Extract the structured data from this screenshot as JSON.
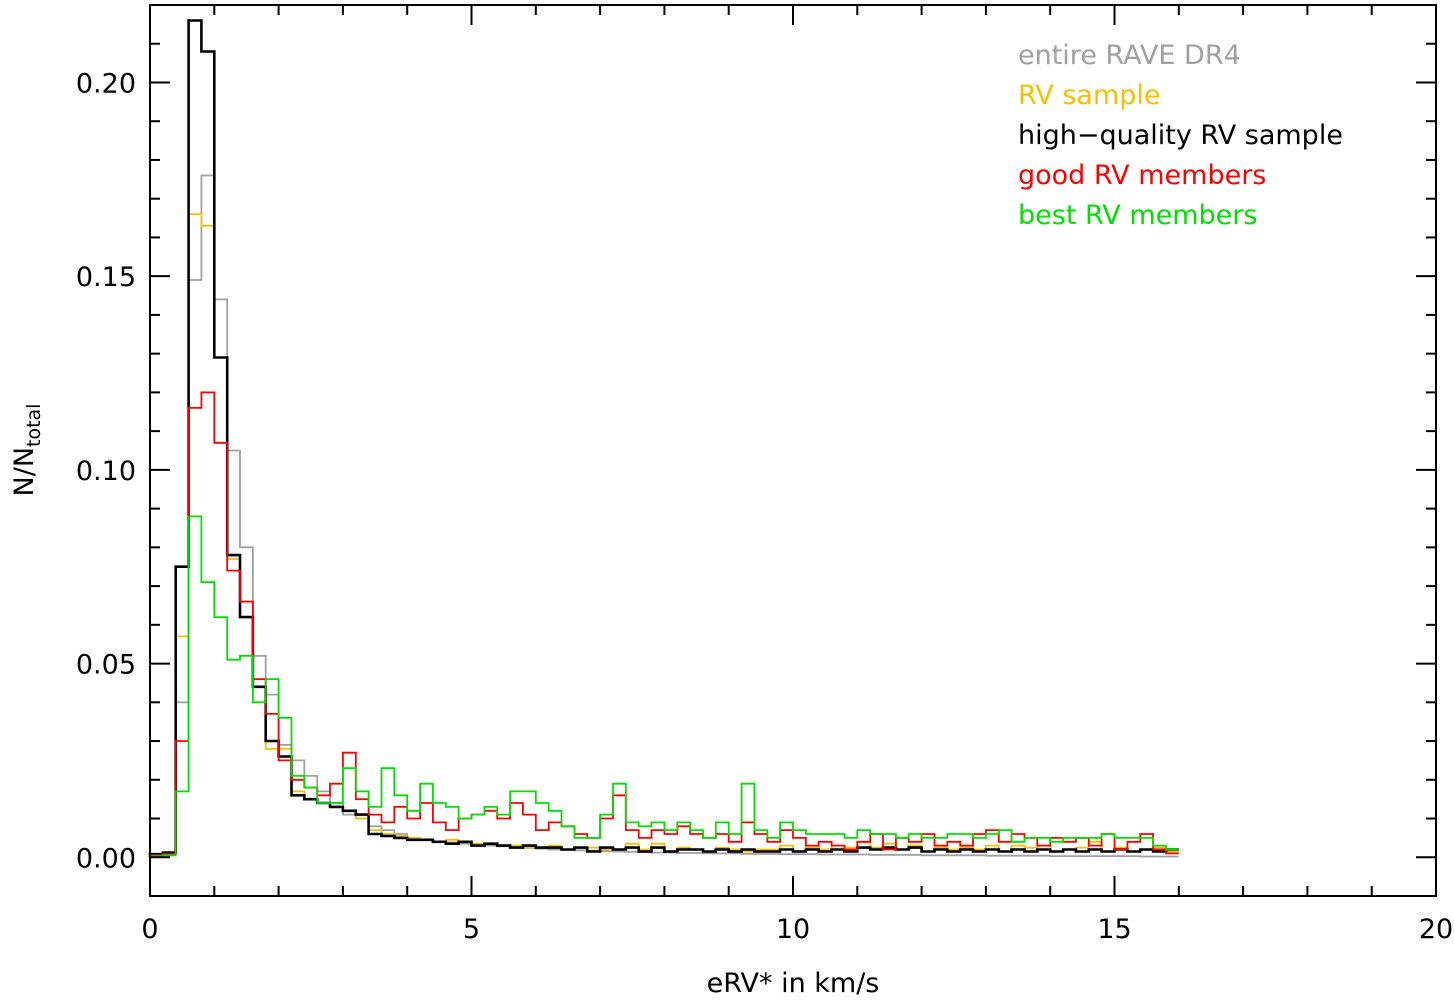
{
  "chart_data": {
    "type": "histogram",
    "title": "",
    "xlabel": "eRV* in km/s",
    "ylabel_main": "N/N",
    "ylabel_sub": "total",
    "xlim": [
      0,
      20
    ],
    "ylim": [
      -0.01,
      0.22
    ],
    "bin_width": 0.2,
    "x_start": 0.0,
    "x_ticks": [
      0,
      5,
      10,
      15,
      20
    ],
    "x_tick_labels": [
      "0",
      "5",
      "10",
      "15",
      "20"
    ],
    "x_minor_step": 1,
    "y_ticks": [
      0.0,
      0.05,
      0.1,
      0.15,
      0.2
    ],
    "y_tick_labels": [
      "0.00",
      "0.05",
      "0.10",
      "0.15",
      "0.20"
    ],
    "y_minor_step": 0.01,
    "grid": false,
    "legend_position": "top-right",
    "series": [
      {
        "name": "entire RAVE DR4",
        "color": "#a0a0a0",
        "values": [
          0.0005,
          0.0009,
          0.04,
          0.149,
          0.176,
          0.144,
          0.105,
          0.08,
          0.052,
          0.042,
          0.029,
          0.025,
          0.021,
          0.017,
          0.014,
          0.011,
          0.01,
          0.008,
          0.007,
          0.006,
          0.005,
          0.0045,
          0.004,
          0.0038,
          0.0035,
          0.0032,
          0.003,
          0.0028,
          0.0026,
          0.0024,
          0.0022,
          0.002,
          0.0019,
          0.0018,
          0.0017,
          0.0016,
          0.0015,
          0.0014,
          0.0013,
          0.0012,
          0.0012,
          0.0011,
          0.0011,
          0.001,
          0.001,
          0.001,
          0.0009,
          0.0009,
          0.0009,
          0.0008,
          0.0008,
          0.0008,
          0.0007,
          0.0007,
          0.0007,
          0.0007,
          0.0006,
          0.0006,
          0.0006,
          0.0006,
          0.0005,
          0.0005,
          0.0005,
          0.0005,
          0.0005,
          0.0004,
          0.0004,
          0.0004,
          0.0004,
          0.0004,
          0.0003,
          0.0003,
          0.0003,
          0.0003,
          0.0003,
          0.0003,
          0.0003,
          0.0002,
          0.0002,
          0.0002
        ]
      },
      {
        "name": "RV sample",
        "color": "#f5c000",
        "values": [
          0.0005,
          0.001,
          0.057,
          0.166,
          0.163,
          0.129,
          0.077,
          0.066,
          0.044,
          0.028,
          0.028,
          0.017,
          0.015,
          0.014,
          0.013,
          0.012,
          0.01,
          0.007,
          0.006,
          0.0055,
          0.005,
          0.0045,
          0.004,
          0.0045,
          0.004,
          0.0035,
          0.0035,
          0.003,
          0.003,
          0.0025,
          0.0025,
          0.003,
          0.002,
          0.0025,
          0.0025,
          0.002,
          0.002,
          0.0035,
          0.002,
          0.0035,
          0.0015,
          0.0025,
          0.002,
          0.0015,
          0.0025,
          0.002,
          0.0015,
          0.002,
          0.002,
          0.003,
          0.0015,
          0.0025,
          0.002,
          0.003,
          0.0025,
          0.004,
          0.0025,
          0.0035,
          0.002,
          0.003,
          0.0015,
          0.0025,
          0.002,
          0.0025,
          0.002,
          0.003,
          0.0015,
          0.003,
          0.0025,
          0.003,
          0.0015,
          0.002,
          0.0025,
          0.004,
          0.0015,
          0.0025,
          0.0015,
          0.002,
          0.0025,
          0.0015
        ]
      },
      {
        "name": "high−quality RV sample",
        "color": "#000000",
        "values": [
          0.0008,
          0.0012,
          0.075,
          0.216,
          0.208,
          0.129,
          0.078,
          0.062,
          0.044,
          0.03,
          0.026,
          0.016,
          0.015,
          0.014,
          0.013,
          0.012,
          0.011,
          0.006,
          0.0055,
          0.005,
          0.0045,
          0.0045,
          0.004,
          0.0035,
          0.004,
          0.003,
          0.0035,
          0.003,
          0.0025,
          0.003,
          0.0025,
          0.0025,
          0.002,
          0.0025,
          0.0015,
          0.0025,
          0.002,
          0.0025,
          0.0015,
          0.0025,
          0.0015,
          0.002,
          0.002,
          0.0015,
          0.002,
          0.0015,
          0.002,
          0.0015,
          0.0015,
          0.002,
          0.0015,
          0.002,
          0.0015,
          0.002,
          0.0015,
          0.0025,
          0.002,
          0.0025,
          0.002,
          0.0025,
          0.0015,
          0.002,
          0.0015,
          0.002,
          0.0015,
          0.002,
          0.0015,
          0.002,
          0.0015,
          0.002,
          0.0015,
          0.002,
          0.0015,
          0.002,
          0.0015,
          0.002,
          0.0015,
          0.002,
          0.0015,
          0.002
        ]
      },
      {
        "name": "good RV members",
        "color": "#ff0000",
        "values": [
          0.0005,
          0.0008,
          0.03,
          0.116,
          0.12,
          0.107,
          0.074,
          0.066,
          0.046,
          0.037,
          0.025,
          0.02,
          0.018,
          0.016,
          0.019,
          0.027,
          0.015,
          0.011,
          0.009,
          0.013,
          0.01,
          0.014,
          0.009,
          0.007,
          0.01,
          0.011,
          0.012,
          0.01,
          0.014,
          0.011,
          0.007,
          0.009,
          0.008,
          0.006,
          0.005,
          0.01,
          0.016,
          0.007,
          0.005,
          0.007,
          0.006,
          0.008,
          0.006,
          0.005,
          0.006,
          0.004,
          0.009,
          0.006,
          0.004,
          0.007,
          0.005,
          0.003,
          0.004,
          0.003,
          0.002,
          0.004,
          0.006,
          0.002,
          0.005,
          0.004,
          0.006,
          0.003,
          0.004,
          0.003,
          0.006,
          0.007,
          0.004,
          0.006,
          0.005,
          0.003,
          0.005,
          0.004,
          0.005,
          0.003,
          0.006,
          0.002,
          0.004,
          0.006,
          0.002,
          0.001
        ]
      },
      {
        "name": "best RV members",
        "color": "#00e000",
        "values": [
          0.0003,
          0.0005,
          0.017,
          0.088,
          0.071,
          0.062,
          0.051,
          0.052,
          0.04,
          0.046,
          0.036,
          0.021,
          0.018,
          0.014,
          0.014,
          0.023,
          0.017,
          0.013,
          0.023,
          0.016,
          0.012,
          0.019,
          0.014,
          0.013,
          0.01,
          0.011,
          0.013,
          0.011,
          0.017,
          0.017,
          0.014,
          0.012,
          0.008,
          0.005,
          0.005,
          0.011,
          0.019,
          0.009,
          0.008,
          0.009,
          0.007,
          0.009,
          0.007,
          0.005,
          0.009,
          0.006,
          0.019,
          0.007,
          0.005,
          0.009,
          0.007,
          0.006,
          0.006,
          0.006,
          0.005,
          0.007,
          0.006,
          0.006,
          0.005,
          0.006,
          0.005,
          0.005,
          0.006,
          0.006,
          0.005,
          0.006,
          0.007,
          0.004,
          0.005,
          0.005,
          0.004,
          0.005,
          0.005,
          0.005,
          0.006,
          0.005,
          0.005,
          0.005,
          0.003,
          0.002
        ]
      }
    ]
  }
}
